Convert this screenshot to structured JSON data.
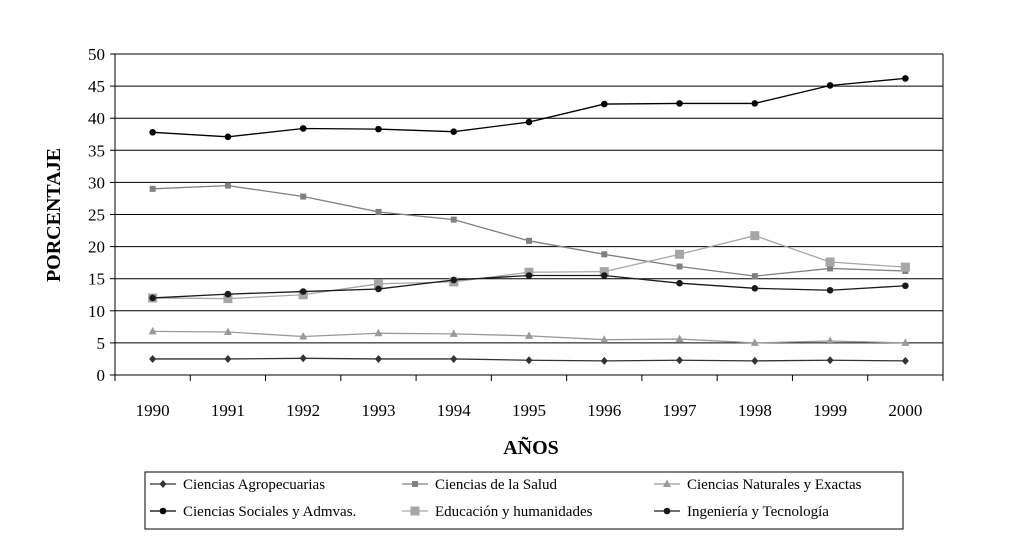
{
  "chart_data": {
    "type": "line",
    "title": "",
    "xlabel": "AÑOS",
    "ylabel": "PORCENTAJE",
    "ylim": [
      0,
      50
    ],
    "yticks": [
      0,
      5,
      10,
      15,
      20,
      25,
      30,
      35,
      40,
      45,
      50
    ],
    "grid": "horizontal",
    "legend_position": "bottom",
    "categories": [
      "1990",
      "1991",
      "1992",
      "1993",
      "1994",
      "1995",
      "1996",
      "1997",
      "1998",
      "1999",
      "2000"
    ],
    "series": [
      {
        "name": "Ciencias Agropecuarias",
        "color": "#333333",
        "marker": "diamond",
        "values": [
          2.5,
          2.5,
          2.6,
          2.5,
          2.5,
          2.3,
          2.2,
          2.3,
          2.2,
          2.3,
          2.2
        ]
      },
      {
        "name": "Ciencias de la Salud",
        "color": "#808080",
        "marker": "square",
        "values": [
          29.0,
          29.5,
          27.8,
          25.4,
          24.2,
          20.9,
          18.8,
          16.9,
          15.4,
          16.6,
          16.2
        ]
      },
      {
        "name": "Ciencias Naturales y Exactas",
        "color": "#999999",
        "marker": "triangle",
        "values": [
          6.8,
          6.7,
          6.0,
          6.5,
          6.4,
          6.1,
          5.5,
          5.6,
          5.0,
          5.3,
          5.0
        ]
      },
      {
        "name": "Ciencias Sociales y Admvas.",
        "color": "#000000",
        "marker": "circle",
        "values": [
          37.8,
          37.1,
          38.4,
          38.3,
          37.9,
          39.4,
          42.2,
          42.3,
          42.3,
          45.1,
          46.2
        ]
      },
      {
        "name": "Educación y humanidades",
        "color": "#a6a6a6",
        "marker": "bigsquare",
        "values": [
          12.0,
          11.9,
          12.5,
          14.2,
          14.5,
          16.0,
          16.1,
          18.8,
          21.7,
          17.6,
          16.8
        ]
      },
      {
        "name": "Ingeniería y Tecnología",
        "color": "#1a1a1a",
        "marker": "circle",
        "values": [
          12.0,
          12.6,
          13.0,
          13.4,
          14.8,
          15.5,
          15.5,
          14.3,
          13.5,
          13.2,
          13.9
        ]
      }
    ]
  }
}
